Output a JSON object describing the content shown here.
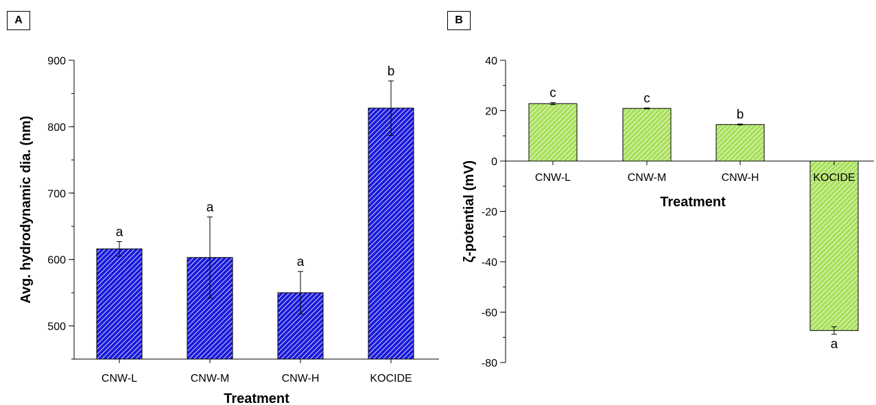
{
  "panels": {
    "a": {
      "label": "A"
    },
    "b": {
      "label": "B"
    }
  },
  "chart_data": [
    {
      "type": "bar",
      "panel": "A",
      "categories": [
        "CNW-L",
        "CNW-M",
        "CNW-H",
        "KOCIDE"
      ],
      "values": [
        616,
        603,
        550,
        828
      ],
      "errors": [
        11,
        61,
        32,
        41
      ],
      "significance": [
        "a",
        "a",
        "a",
        "b"
      ],
      "xlabel": "Treatment",
      "ylabel": "Avg. hydrodynamic dia. (nm)",
      "ylim": [
        450,
        900
      ],
      "yticks": [
        500,
        600,
        700,
        800,
        900
      ],
      "bar_color": "#1a1adc",
      "hatch": "diagonal"
    },
    {
      "type": "bar",
      "panel": "B",
      "categories": [
        "CNW-L",
        "CNW-M",
        "CNW-H",
        "KOCIDE"
      ],
      "values": [
        22.8,
        20.9,
        14.5,
        -67.3
      ],
      "errors": [
        0.4,
        0.2,
        0.2,
        1.5
      ],
      "significance": [
        "c",
        "c",
        "b",
        "a"
      ],
      "xlabel": "Treatment",
      "ylabel": "ζ-potential (mV)",
      "ylim": [
        -80,
        40
      ],
      "yticks": [
        -80,
        -60,
        -40,
        -20,
        0,
        20,
        40
      ],
      "bar_color": "#a8e05a",
      "hatch": "diagonal"
    }
  ]
}
